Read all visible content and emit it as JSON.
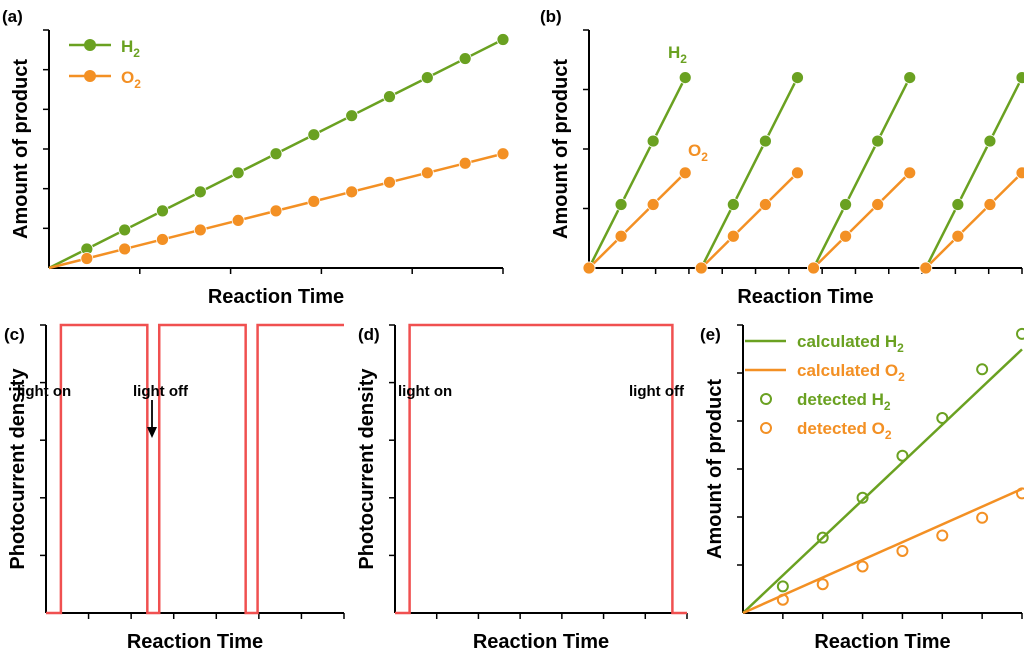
{
  "colors": {
    "h2": "#6aa121",
    "o2": "#f39024",
    "photo": "#f05050",
    "axis": "#000000"
  },
  "chart_data": [
    {
      "panel": "(a)",
      "type": "line",
      "title": "",
      "xlabel": "Reaction Time",
      "ylabel": "Amount of product",
      "xlim": [
        0,
        12
      ],
      "ylim": [
        0,
        12.5
      ],
      "series": [
        {
          "name": "H2",
          "color": "#6aa121",
          "x": [
            0,
            1,
            2,
            3,
            4,
            5,
            6,
            7,
            8,
            9,
            10,
            11,
            12
          ],
          "y": [
            0,
            1,
            2,
            3,
            4,
            5,
            6,
            7,
            8,
            9,
            10,
            11,
            12
          ]
        },
        {
          "name": "O2",
          "color": "#f39024",
          "x": [
            0,
            1,
            2,
            3,
            4,
            5,
            6,
            7,
            8,
            9,
            10,
            11,
            12
          ],
          "y": [
            0,
            0.5,
            1,
            1.5,
            2,
            2.5,
            3,
            3.5,
            4,
            4.5,
            5,
            5.5,
            6
          ]
        }
      ],
      "legend": [
        {
          "base": "H",
          "sub": "2",
          "color": "#6aa121"
        },
        {
          "base": "O",
          "sub": "2",
          "color": "#f39024"
        }
      ],
      "legend_position": "top-left",
      "x_ticks": 5,
      "y_ticks": 6
    },
    {
      "panel": "(b)",
      "type": "line",
      "title": "",
      "xlabel": "Reaction Time",
      "ylabel": "Amount of product",
      "xlim": [
        0,
        13.5
      ],
      "ylim": [
        0,
        15
      ],
      "cycles": 4,
      "series": [
        {
          "name": "H2",
          "color": "#6aa121",
          "cycle_x": [
            0,
            1,
            2,
            3
          ],
          "cycle_y": [
            0,
            4,
            8,
            12
          ]
        },
        {
          "name": "O2",
          "color": "#f39024",
          "cycle_x": [
            0,
            1,
            2,
            3
          ],
          "cycle_y": [
            0,
            2,
            4,
            6
          ]
        }
      ],
      "annotations": [
        {
          "base": "H",
          "sub": "2",
          "color": "#6aa121"
        },
        {
          "base": "O",
          "sub": "2",
          "color": "#f39024"
        }
      ],
      "x_ticks": 13,
      "y_ticks": 4
    },
    {
      "panel": "(c)",
      "type": "line",
      "title": "",
      "xlabel": "Reaction Time",
      "ylabel": "Photocurrent density",
      "xlim": [
        0,
        100
      ],
      "ylim": [
        0,
        1
      ],
      "series": [
        {
          "name": "",
          "color": "#f05050",
          "x": [
            0,
            5,
            5,
            34,
            34,
            38,
            38,
            67,
            67,
            71,
            71,
            100
          ],
          "y": [
            0,
            0,
            1,
            1,
            0,
            0,
            1,
            1,
            0,
            0,
            1,
            1
          ]
        }
      ],
      "annotations": [
        "light on",
        "light off"
      ],
      "x_ticks": 7,
      "y_ticks": 5
    },
    {
      "panel": "(d)",
      "type": "line",
      "title": "",
      "xlabel": "Reaction Time",
      "ylabel": "Photocurrent density",
      "xlim": [
        0,
        100
      ],
      "ylim": [
        0,
        1
      ],
      "series": [
        {
          "name": "",
          "color": "#f05050",
          "x": [
            0,
            5,
            5,
            95,
            95,
            100
          ],
          "y": [
            0,
            0,
            1,
            1,
            0,
            0
          ]
        }
      ],
      "annotations": [
        "light on",
        "light off"
      ],
      "x_ticks": 7,
      "y_ticks": 5
    },
    {
      "panel": "(e)",
      "type": "scatter",
      "title": "",
      "xlabel": "Reaction Time",
      "ylabel": "Amount of product",
      "xlim": [
        0,
        7
      ],
      "ylim": [
        0,
        13
      ],
      "series": [
        {
          "name": "calculated H2",
          "kind": "line",
          "color": "#6aa121",
          "x": [
            0,
            7
          ],
          "y": [
            0,
            11.9
          ]
        },
        {
          "name": "calculated O2",
          "kind": "line",
          "color": "#f39024",
          "x": [
            0,
            7
          ],
          "y": [
            0,
            5.6
          ]
        },
        {
          "name": "detected H2",
          "kind": "points",
          "color": "#6aa121",
          "x": [
            1,
            2,
            3,
            4,
            5,
            6,
            7
          ],
          "y": [
            1.2,
            3.4,
            5.2,
            7.1,
            8.8,
            11.0,
            12.6
          ]
        },
        {
          "name": "detected O2",
          "kind": "points",
          "color": "#f39024",
          "x": [
            1,
            2,
            3,
            4,
            5,
            6,
            7
          ],
          "y": [
            0.6,
            1.3,
            2.1,
            2.8,
            3.5,
            4.3,
            5.4
          ]
        }
      ],
      "legend": [
        {
          "base": "calculated H",
          "sub": "2",
          "color": "#6aa121",
          "kind": "line"
        },
        {
          "base": "calculated O",
          "sub": "2",
          "color": "#f39024",
          "kind": "line"
        },
        {
          "base": "detected H",
          "sub": "2",
          "color": "#6aa121",
          "kind": "points"
        },
        {
          "base": "detected O",
          "sub": "2",
          "color": "#f39024",
          "kind": "points"
        }
      ],
      "legend_position": "top-left",
      "x_ticks": 7,
      "y_ticks": 6
    }
  ]
}
